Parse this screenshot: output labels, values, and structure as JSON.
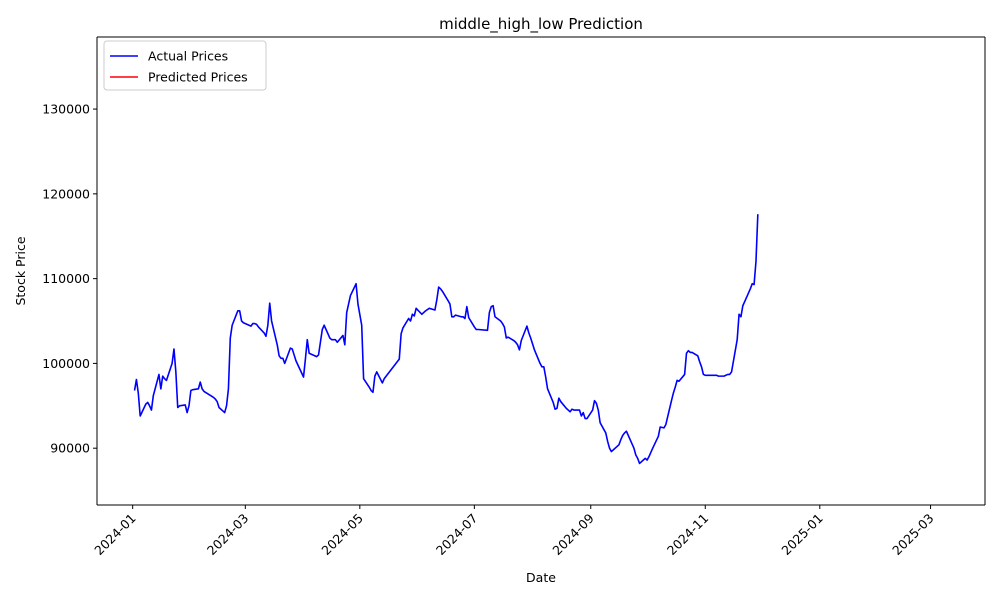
{
  "chart_data": {
    "type": "line",
    "title": "middle_high_low Prediction",
    "xlabel": "Date",
    "ylabel": "Stock Price",
    "x_ticks": [
      "2024-01",
      "2024-03",
      "2024-05",
      "2024-07",
      "2024-09",
      "2024-11",
      "2025-01",
      "2025-03"
    ],
    "y_ticks": [
      90000,
      100000,
      110000,
      120000,
      130000
    ],
    "y_tick_labels": [
      "90000",
      "100000",
      "110000",
      "120000",
      "130000"
    ],
    "xlim": [
      "2023-12-13",
      "2025-03-30"
    ],
    "ylim": [
      83300,
      138500
    ],
    "grid": false,
    "legend_position": "upper left",
    "series": [
      {
        "name": "Actual Prices",
        "color": "#0000ff",
        "points": [
          [
            "2024-01-02",
            96800
          ],
          [
            "2024-01-03",
            98100
          ],
          [
            "2024-01-04",
            96500
          ],
          [
            "2024-01-05",
            93800
          ],
          [
            "2024-01-08",
            95200
          ],
          [
            "2024-01-09",
            95400
          ],
          [
            "2024-01-10",
            95000
          ],
          [
            "2024-01-11",
            94500
          ],
          [
            "2024-01-12",
            96200
          ],
          [
            "2024-01-15",
            98700
          ],
          [
            "2024-01-16",
            97000
          ],
          [
            "2024-01-17",
            98500
          ],
          [
            "2024-01-18",
            98200
          ],
          [
            "2024-01-19",
            98000
          ],
          [
            "2024-01-22",
            100000
          ],
          [
            "2024-01-23",
            101700
          ],
          [
            "2024-01-24",
            99000
          ],
          [
            "2024-01-25",
            94800
          ],
          [
            "2024-01-26",
            95000
          ],
          [
            "2024-01-29",
            95100
          ],
          [
            "2024-01-30",
            94200
          ],
          [
            "2024-01-31",
            95000
          ],
          [
            "2024-02-01",
            96800
          ],
          [
            "2024-02-02",
            96900
          ],
          [
            "2024-02-05",
            97000
          ],
          [
            "2024-02-06",
            97800
          ],
          [
            "2024-02-07",
            97000
          ],
          [
            "2024-02-08",
            96700
          ],
          [
            "2024-02-13",
            96000
          ],
          [
            "2024-02-14",
            95800
          ],
          [
            "2024-02-15",
            95500
          ],
          [
            "2024-02-16",
            94800
          ],
          [
            "2024-02-19",
            94200
          ],
          [
            "2024-02-20",
            95000
          ],
          [
            "2024-02-21",
            97000
          ],
          [
            "2024-02-22",
            103000
          ],
          [
            "2024-02-23",
            104500
          ],
          [
            "2024-02-26",
            106200
          ],
          [
            "2024-02-27",
            106200
          ],
          [
            "2024-02-28",
            105000
          ],
          [
            "2024-02-29",
            104800
          ],
          [
            "2024-03-04",
            104400
          ],
          [
            "2024-03-05",
            104700
          ],
          [
            "2024-03-06",
            104700
          ],
          [
            "2024-03-07",
            104600
          ],
          [
            "2024-03-08",
            104300
          ],
          [
            "2024-03-11",
            103600
          ],
          [
            "2024-03-12",
            103200
          ],
          [
            "2024-03-13",
            104500
          ],
          [
            "2024-03-14",
            107100
          ],
          [
            "2024-03-15",
            105000
          ],
          [
            "2024-03-18",
            102200
          ],
          [
            "2024-03-19",
            100900
          ],
          [
            "2024-03-20",
            100600
          ],
          [
            "2024-03-21",
            100600
          ],
          [
            "2024-03-22",
            100000
          ],
          [
            "2024-03-25",
            101800
          ],
          [
            "2024-03-26",
            101700
          ],
          [
            "2024-03-27",
            101000
          ],
          [
            "2024-03-28",
            100300
          ],
          [
            "2024-04-01",
            98400
          ],
          [
            "2024-04-02",
            100500
          ],
          [
            "2024-04-03",
            102800
          ],
          [
            "2024-04-04",
            101200
          ],
          [
            "2024-04-08",
            100800
          ],
          [
            "2024-04-09",
            101000
          ],
          [
            "2024-04-10",
            102500
          ],
          [
            "2024-04-11",
            104000
          ],
          [
            "2024-04-12",
            104500
          ],
          [
            "2024-04-15",
            103000
          ],
          [
            "2024-04-16",
            102800
          ],
          [
            "2024-04-17",
            102800
          ],
          [
            "2024-04-18",
            102800
          ],
          [
            "2024-04-19",
            102500
          ],
          [
            "2024-04-22",
            103300
          ],
          [
            "2024-04-23",
            102200
          ],
          [
            "2024-04-24",
            106000
          ],
          [
            "2024-04-25",
            107000
          ],
          [
            "2024-04-26",
            108000
          ],
          [
            "2024-04-29",
            109400
          ],
          [
            "2024-04-30",
            107000
          ],
          [
            "2024-05-02",
            104500
          ],
          [
            "2024-05-03",
            98200
          ],
          [
            "2024-05-06",
            97200
          ],
          [
            "2024-05-07",
            96800
          ],
          [
            "2024-05-08",
            96600
          ],
          [
            "2024-05-09",
            98500
          ],
          [
            "2024-05-10",
            99000
          ],
          [
            "2024-05-13",
            97700
          ],
          [
            "2024-05-14",
            98200
          ],
          [
            "2024-05-22",
            100500
          ],
          [
            "2024-05-23",
            103500
          ],
          [
            "2024-05-24",
            104200
          ],
          [
            "2024-05-27",
            105300
          ],
          [
            "2024-05-28",
            105000
          ],
          [
            "2024-05-29",
            105800
          ],
          [
            "2024-05-30",
            105600
          ],
          [
            "2024-05-31",
            106500
          ],
          [
            "2024-06-03",
            105800
          ],
          [
            "2024-06-04",
            106000
          ],
          [
            "2024-06-05",
            106200
          ],
          [
            "2024-06-07",
            106500
          ],
          [
            "2024-06-10",
            106300
          ],
          [
            "2024-06-11",
            107500
          ],
          [
            "2024-06-12",
            109000
          ],
          [
            "2024-06-13",
            108800
          ],
          [
            "2024-06-14",
            108500
          ],
          [
            "2024-06-17",
            107400
          ],
          [
            "2024-06-18",
            107000
          ],
          [
            "2024-06-19",
            105500
          ],
          [
            "2024-06-20",
            105500
          ],
          [
            "2024-06-21",
            105700
          ],
          [
            "2024-06-24",
            105500
          ],
          [
            "2024-06-25",
            105500
          ],
          [
            "2024-06-26",
            105300
          ],
          [
            "2024-06-27",
            106700
          ],
          [
            "2024-06-28",
            105400
          ],
          [
            "2024-07-01",
            104300
          ],
          [
            "2024-07-02",
            104000
          ],
          [
            "2024-07-03",
            104000
          ],
          [
            "2024-07-08",
            103900
          ],
          [
            "2024-07-09",
            106000
          ],
          [
            "2024-07-10",
            106700
          ],
          [
            "2024-07-11",
            106800
          ],
          [
            "2024-07-12",
            105500
          ],
          [
            "2024-07-15",
            105000
          ],
          [
            "2024-07-16",
            104700
          ],
          [
            "2024-07-17",
            104300
          ],
          [
            "2024-07-18",
            103000
          ],
          [
            "2024-07-19",
            103100
          ],
          [
            "2024-07-22",
            102700
          ],
          [
            "2024-07-23",
            102500
          ],
          [
            "2024-07-24",
            102200
          ],
          [
            "2024-07-25",
            101600
          ],
          [
            "2024-07-26",
            102700
          ],
          [
            "2024-07-29",
            104400
          ],
          [
            "2024-07-30",
            103600
          ],
          [
            "2024-07-31",
            103000
          ],
          [
            "2024-08-01",
            102300
          ],
          [
            "2024-08-02",
            101600
          ],
          [
            "2024-08-05",
            100000
          ],
          [
            "2024-08-06",
            99600
          ],
          [
            "2024-08-07",
            99600
          ],
          [
            "2024-08-08",
            98400
          ],
          [
            "2024-08-09",
            97000
          ],
          [
            "2024-08-12",
            95400
          ],
          [
            "2024-08-13",
            94600
          ],
          [
            "2024-08-14",
            94700
          ],
          [
            "2024-08-15",
            95900
          ],
          [
            "2024-08-16",
            95500
          ],
          [
            "2024-08-19",
            94700
          ],
          [
            "2024-08-20",
            94500
          ],
          [
            "2024-08-21",
            94300
          ],
          [
            "2024-08-22",
            94600
          ],
          [
            "2024-08-23",
            94500
          ],
          [
            "2024-08-26",
            94500
          ],
          [
            "2024-08-27",
            93800
          ],
          [
            "2024-08-28",
            94200
          ],
          [
            "2024-08-29",
            93500
          ],
          [
            "2024-08-30",
            93500
          ],
          [
            "2024-09-02",
            94500
          ],
          [
            "2024-09-03",
            95600
          ],
          [
            "2024-09-04",
            95300
          ],
          [
            "2024-09-05",
            94500
          ],
          [
            "2024-09-06",
            93000
          ],
          [
            "2024-09-09",
            91800
          ],
          [
            "2024-09-10",
            90800
          ],
          [
            "2024-09-11",
            90000
          ],
          [
            "2024-09-12",
            89600
          ],
          [
            "2024-09-13",
            89800
          ],
          [
            "2024-09-16",
            90400
          ],
          [
            "2024-09-17",
            91000
          ],
          [
            "2024-09-18",
            91500
          ],
          [
            "2024-09-19",
            91800
          ],
          [
            "2024-09-20",
            92000
          ],
          [
            "2024-09-23",
            90500
          ],
          [
            "2024-09-24",
            90000
          ],
          [
            "2024-09-25",
            89200
          ],
          [
            "2024-09-26",
            88800
          ],
          [
            "2024-09-27",
            88200
          ],
          [
            "2024-09-30",
            88800
          ],
          [
            "2024-10-01",
            88600
          ],
          [
            "2024-10-02",
            89000
          ],
          [
            "2024-10-03",
            89500
          ],
          [
            "2024-10-04",
            90000
          ],
          [
            "2024-10-07",
            91400
          ],
          [
            "2024-10-08",
            92500
          ],
          [
            "2024-10-10",
            92400
          ],
          [
            "2024-10-11",
            92800
          ],
          [
            "2024-10-14",
            95600
          ],
          [
            "2024-10-15",
            96500
          ],
          [
            "2024-10-16",
            97200
          ],
          [
            "2024-10-17",
            98000
          ],
          [
            "2024-10-18",
            97900
          ],
          [
            "2024-10-21",
            98700
          ],
          [
            "2024-10-22",
            101200
          ],
          [
            "2024-10-23",
            101500
          ],
          [
            "2024-10-24",
            101300
          ],
          [
            "2024-10-25",
            101300
          ],
          [
            "2024-10-28",
            100900
          ],
          [
            "2024-10-29",
            100200
          ],
          [
            "2024-10-30",
            99600
          ],
          [
            "2024-10-31",
            98700
          ],
          [
            "2024-11-01",
            98600
          ],
          [
            "2024-11-04",
            98600
          ],
          [
            "2024-11-05",
            98600
          ],
          [
            "2024-11-06",
            98600
          ],
          [
            "2024-11-07",
            98600
          ],
          [
            "2024-11-08",
            98500
          ],
          [
            "2024-11-11",
            98500
          ],
          [
            "2024-11-12",
            98600
          ],
          [
            "2024-11-13",
            98700
          ],
          [
            "2024-11-14",
            98700
          ],
          [
            "2024-11-15",
            99000
          ],
          [
            "2024-11-18",
            102800
          ],
          [
            "2024-11-19",
            105800
          ],
          [
            "2024-11-20",
            105500
          ],
          [
            "2024-11-21",
            106800
          ],
          [
            "2024-11-22",
            107300
          ],
          [
            "2024-11-25",
            108800
          ],
          [
            "2024-11-26",
            109400
          ],
          [
            "2024-11-27",
            109300
          ],
          [
            "2024-11-28",
            112000
          ],
          [
            "2024-11-29",
            117600
          ]
        ]
      },
      {
        "name": "Predicted Prices",
        "color": "#ff0000",
        "points": []
      }
    ]
  }
}
